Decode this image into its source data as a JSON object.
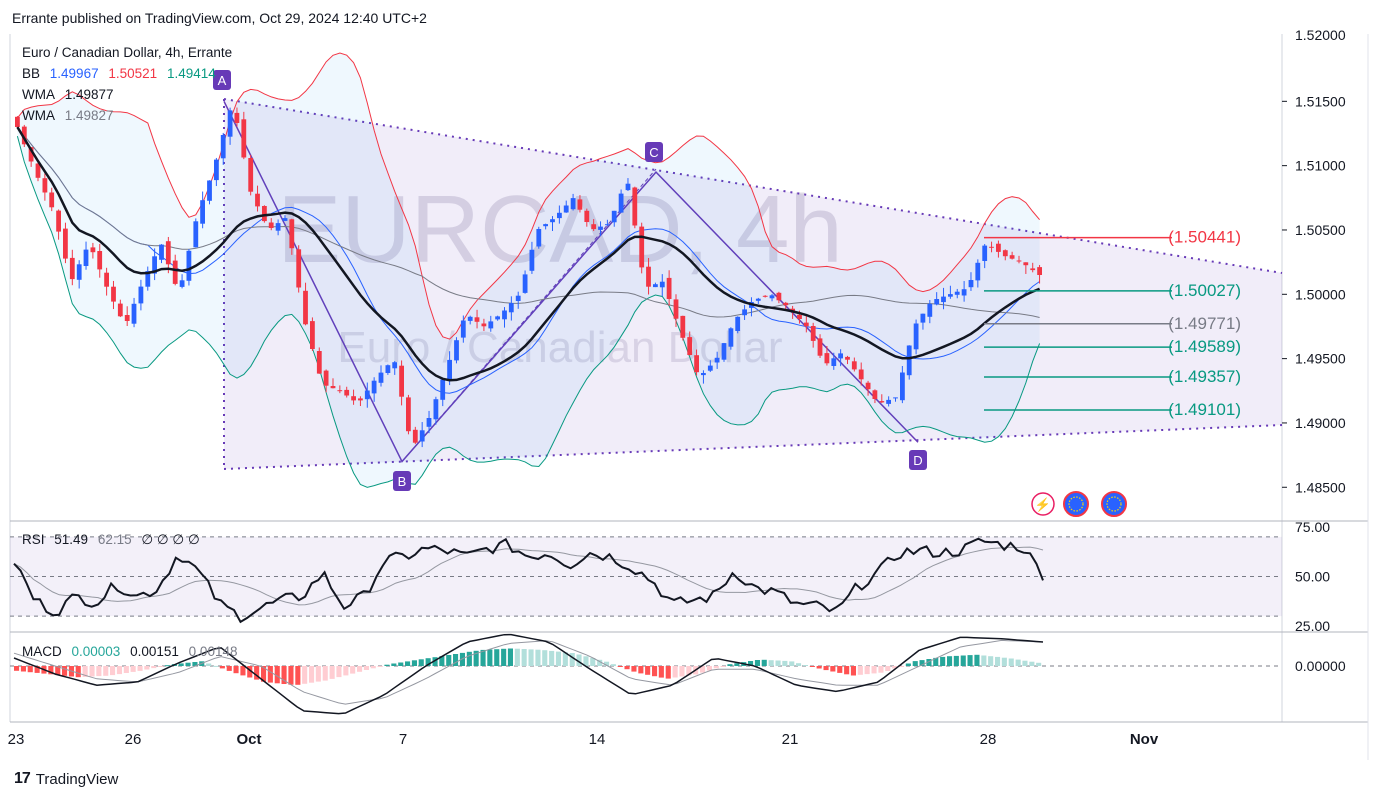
{
  "header": {
    "published": "Errante published on TradingView.com, Oct 29, 2024 12:40 UTC+2"
  },
  "watermark": {
    "big": "EURCAD, 4h",
    "small": "Euro / Canadian Dollar"
  },
  "legend": {
    "title": "Euro / Canadian Dollar, 4h, Errante",
    "bb_label": "BB",
    "bb_basis": "1.49967",
    "bb_upper": "1.50521",
    "bb_lower": "1.49414",
    "wma1_label": "WMA",
    "wma1_value": "1.49877",
    "wma2_label": "WMA",
    "wma2_value": "1.49827"
  },
  "rsi_legend": {
    "label": "RSI",
    "value": "51.49",
    "ma": "62.15",
    "extra": "∅ ∅ ∅ ∅"
  },
  "macd_legend": {
    "label": "MACD",
    "hist": "0.00003",
    "macd": "0.00151",
    "signal": "0.00148"
  },
  "footer": {
    "brand": "TradingView"
  },
  "colors": {
    "bull": "#2962ff",
    "bear": "#f23645",
    "bbUpper": "#f23645",
    "bbLower": "#089981",
    "bbBasis": "#2962ff",
    "pattern": "#673ab7"
  },
  "chart_data": {
    "type": "candlestick",
    "symbol": "EURCAD",
    "timeframe": "4h",
    "price_axis": {
      "ticks": [
        "1.51500",
        "1.51000",
        "1.50500",
        "1.50000",
        "1.49500",
        "1.49000",
        "1.48500"
      ],
      "top_partial": "1.52000",
      "ylim": [
        1.483,
        1.52
      ]
    },
    "time_axis": {
      "labels": [
        "23",
        "26",
        "Oct",
        "7",
        "14",
        "21",
        "28",
        "Nov"
      ]
    },
    "pattern_points": [
      {
        "label": "A",
        "price": 1.515
      },
      {
        "label": "B",
        "price": 1.487
      },
      {
        "label": "C",
        "price": 1.5095
      },
      {
        "label": "D",
        "price": 1.4885
      }
    ],
    "fib_levels": [
      {
        "label": "(1.50441)",
        "value": 1.50441,
        "color": "#f23645"
      },
      {
        "label": "(1.50027)",
        "value": 1.50027,
        "color": "#089981"
      },
      {
        "label": "(1.49771)",
        "value": 1.49771,
        "color": "#787b86"
      },
      {
        "label": "(1.49589)",
        "value": 1.49589,
        "color": "#089981"
      },
      {
        "label": "(1.49357)",
        "value": 1.49357,
        "color": "#089981"
      },
      {
        "label": "(1.49101)",
        "value": 1.49101,
        "color": "#089981"
      }
    ],
    "close_keypoints": [
      1.513,
      1.5095,
      1.5065,
      1.501,
      1.504,
      1.5005,
      1.4975,
      1.501,
      1.504,
      1.5,
      1.506,
      1.51,
      1.515,
      1.508,
      1.505,
      1.506,
      1.498,
      1.493,
      1.4925,
      1.4915,
      1.4935,
      1.495,
      1.488,
      1.4905,
      1.4945,
      1.4985,
      1.4975,
      1.4985,
      1.5,
      1.505,
      1.506,
      1.5075,
      1.505,
      1.5055,
      1.509,
      1.5005,
      1.501,
      1.497,
      1.4935,
      1.495,
      1.498,
      1.4995,
      1.5,
      1.499,
      1.4975,
      1.4945,
      1.4955,
      1.4935,
      1.4915,
      1.492,
      1.4975,
      1.4995,
      1.5,
      1.5005,
      1.504,
      1.503,
      1.5025,
      1.5015
    ],
    "rsi": {
      "ticks": [
        "75.00",
        "50.00",
        "25.00"
      ],
      "ylim": [
        22,
        78
      ],
      "bands": [
        70,
        30
      ],
      "mid": 50,
      "keypoints": [
        58,
        38,
        32,
        40,
        37,
        46,
        40,
        44,
        62,
        52,
        36,
        30,
        34,
        38,
        40,
        52,
        35,
        40,
        58,
        60,
        64,
        63,
        60,
        64,
        66,
        60,
        62,
        56,
        62,
        60,
        55,
        48,
        36,
        38,
        40,
        53,
        44,
        42,
        36,
        35,
        32,
        45,
        52,
        62,
        63,
        62,
        63,
        68,
        66,
        65,
        51
      ]
    },
    "macd": {
      "ticks": [
        "0.00000"
      ],
      "hist_keypoints": [
        -0.0003,
        -0.0005,
        -0.0007,
        -0.0006,
        -0.0003,
        0.0001,
        0.0003,
        -0.0004,
        -0.001,
        -0.0012,
        -0.0009,
        -0.0004,
        0.0001,
        0.0004,
        0.0007,
        0.001,
        0.0011,
        0.001,
        0.0008,
        0.0003,
        -0.0004,
        -0.0008,
        -0.0005,
        0.0001,
        0.0004,
        0.0003,
        -0.0002,
        -0.0006,
        -0.0004,
        0.0003,
        0.0006,
        0.0007,
        0.0005,
        0.0002
      ],
      "macd_keypoints": [
        0.0005,
        -0.0005,
        -0.0012,
        -0.001,
        0.0002,
        0.0012,
        -0.0008,
        -0.0028,
        -0.003,
        -0.0018,
        0.0,
        0.0015,
        0.002,
        0.0015,
        -0.0002,
        -0.0018,
        -0.0012,
        0.0005,
        0.0,
        -0.0012,
        -0.0016,
        -0.001,
        0.001,
        0.0018,
        0.0017,
        0.0015
      ],
      "signal_keypoints": [
        0.0008,
        0.0,
        -0.0008,
        -0.001,
        -0.0004,
        0.0006,
        0.0,
        -0.0016,
        -0.0024,
        -0.002,
        -0.0008,
        0.0006,
        0.0014,
        0.0016,
        0.0006,
        -0.0008,
        -0.0012,
        -0.0002,
        -0.0002,
        -0.0008,
        -0.0012,
        -0.0012,
        0.0,
        0.0012,
        0.0016,
        0.0015
      ]
    }
  }
}
